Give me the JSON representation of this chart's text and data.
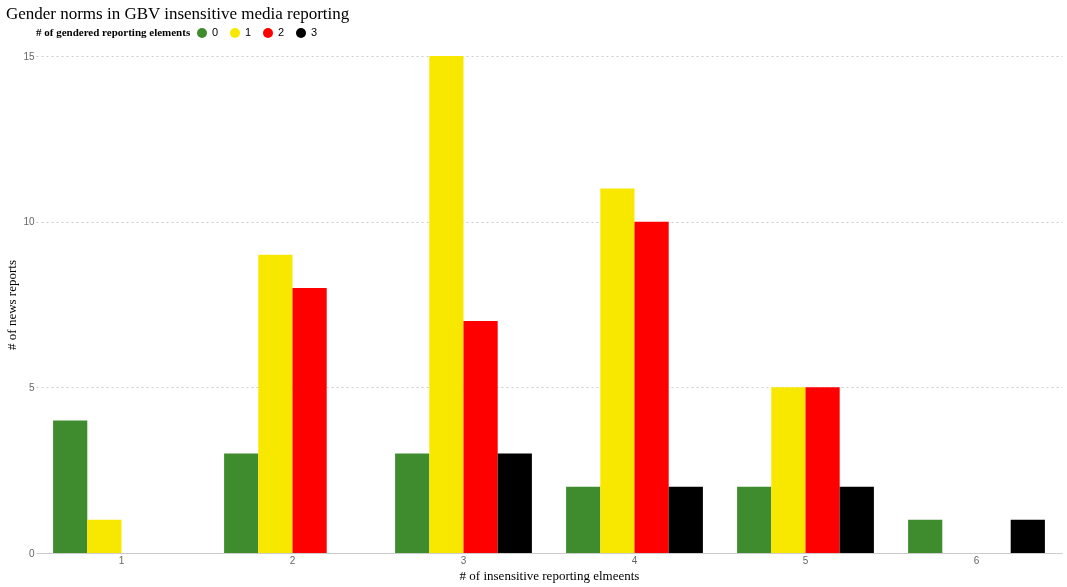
{
  "chart_data": {
    "type": "bar",
    "title": "Gender norms in GBV insensitive media reporting",
    "xlabel": "# of insensitive reporting elmeents",
    "ylabel": "# of news reports",
    "legend_title": "# of gendered reporting elements",
    "categories": [
      "1",
      "2",
      "3",
      "4",
      "5",
      "6"
    ],
    "series": [
      {
        "name": "0",
        "color": "#3f8c2f",
        "values": [
          4,
          3,
          3,
          2,
          2,
          1
        ]
      },
      {
        "name": "1",
        "color": "#f8e800",
        "values": [
          1,
          9,
          15,
          11,
          5,
          null
        ]
      },
      {
        "name": "2",
        "color": "#ff0000",
        "values": [
          null,
          8,
          7,
          10,
          5,
          null
        ]
      },
      {
        "name": "3",
        "color": "#000000",
        "values": [
          null,
          null,
          3,
          2,
          2,
          1
        ]
      }
    ],
    "ylim": [
      0,
      15
    ],
    "yticks": [
      0,
      5,
      10,
      15
    ],
    "grid": "y",
    "legend": "top left"
  }
}
